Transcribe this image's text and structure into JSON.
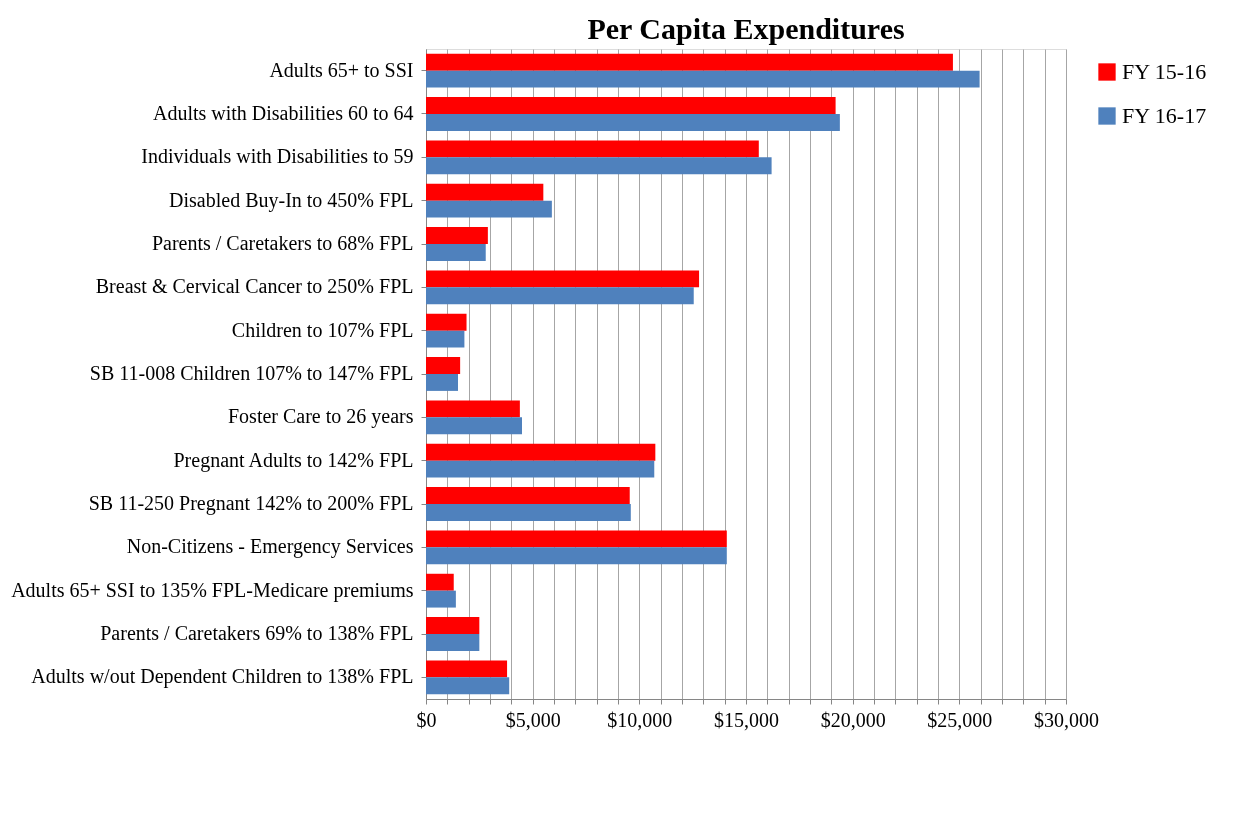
{
  "chart_data": {
    "type": "bar",
    "orientation": "horizontal",
    "title": "Per Capita Expenditures",
    "categories": [
      "Adults 65+ to SSI",
      "Adults with Disabilities 60 to 64",
      "Individuals with Disabilities to 59",
      "Disabled Buy-In to 450% FPL",
      "Parents / Caretakers to 68% FPL",
      "Breast & Cervical Cancer to 250% FPL",
      "Children to 107% FPL",
      "SB 11-008 Children 107% to 147% FPL",
      "Foster Care to 26 years",
      "Pregnant Adults to 142% FPL",
      "SB 11-250 Pregnant 142% to 200% FPL",
      "Non-Citizens - Emergency Services",
      "Adults 65+ SSI to 135% FPL-Medicare premiums",
      "Parents / Caretakers 69% to 138% FPL",
      "Adults w/out Dependent Children to 138% FPL"
    ],
    "series": [
      {
        "name": "FY 15-16",
        "color": "#ff0000",
        "values": [
          24700,
          19200,
          15600,
          5500,
          2900,
          12800,
          1900,
          1600,
          4400,
          10750,
          9550,
          14100,
          1300,
          2500,
          3800
        ]
      },
      {
        "name": "FY 16-17",
        "color": "#4f81bd",
        "values": [
          25950,
          19400,
          16200,
          5900,
          2800,
          12550,
          1800,
          1500,
          4500,
          10700,
          9600,
          14100,
          1400,
          2500,
          3900
        ]
      }
    ],
    "xlim": [
      0,
      30000
    ],
    "xticks": [
      {
        "value": 0,
        "label": "$0"
      },
      {
        "value": 1000,
        "label": null
      },
      {
        "value": 2000,
        "label": null
      },
      {
        "value": 3000,
        "label": null
      },
      {
        "value": 4000,
        "label": null
      },
      {
        "value": 5000,
        "label": "$5,000"
      },
      {
        "value": 6000,
        "label": null
      },
      {
        "value": 7000,
        "label": null
      },
      {
        "value": 8000,
        "label": null
      },
      {
        "value": 9000,
        "label": null
      },
      {
        "value": 10000,
        "label": "$10,000"
      },
      {
        "value": 11000,
        "label": null
      },
      {
        "value": 12000,
        "label": null
      },
      {
        "value": 13000,
        "label": null
      },
      {
        "value": 14000,
        "label": null
      },
      {
        "value": 15000,
        "label": "$15,000"
      },
      {
        "value": 16000,
        "label": null
      },
      {
        "value": 17000,
        "label": null
      },
      {
        "value": 18000,
        "label": null
      },
      {
        "value": 19000,
        "label": null
      },
      {
        "value": 20000,
        "label": "$20,000"
      },
      {
        "value": 21000,
        "label": null
      },
      {
        "value": 22000,
        "label": null
      },
      {
        "value": 23000,
        "label": null
      },
      {
        "value": 24000,
        "label": null
      },
      {
        "value": 25000,
        "label": "$25,000"
      },
      {
        "value": 26000,
        "label": null
      },
      {
        "value": 27000,
        "label": null
      },
      {
        "value": 28000,
        "label": null
      },
      {
        "value": 29000,
        "label": null
      },
      {
        "value": 30000,
        "label": "$30,000"
      }
    ],
    "grid": "x",
    "legend": "right"
  }
}
